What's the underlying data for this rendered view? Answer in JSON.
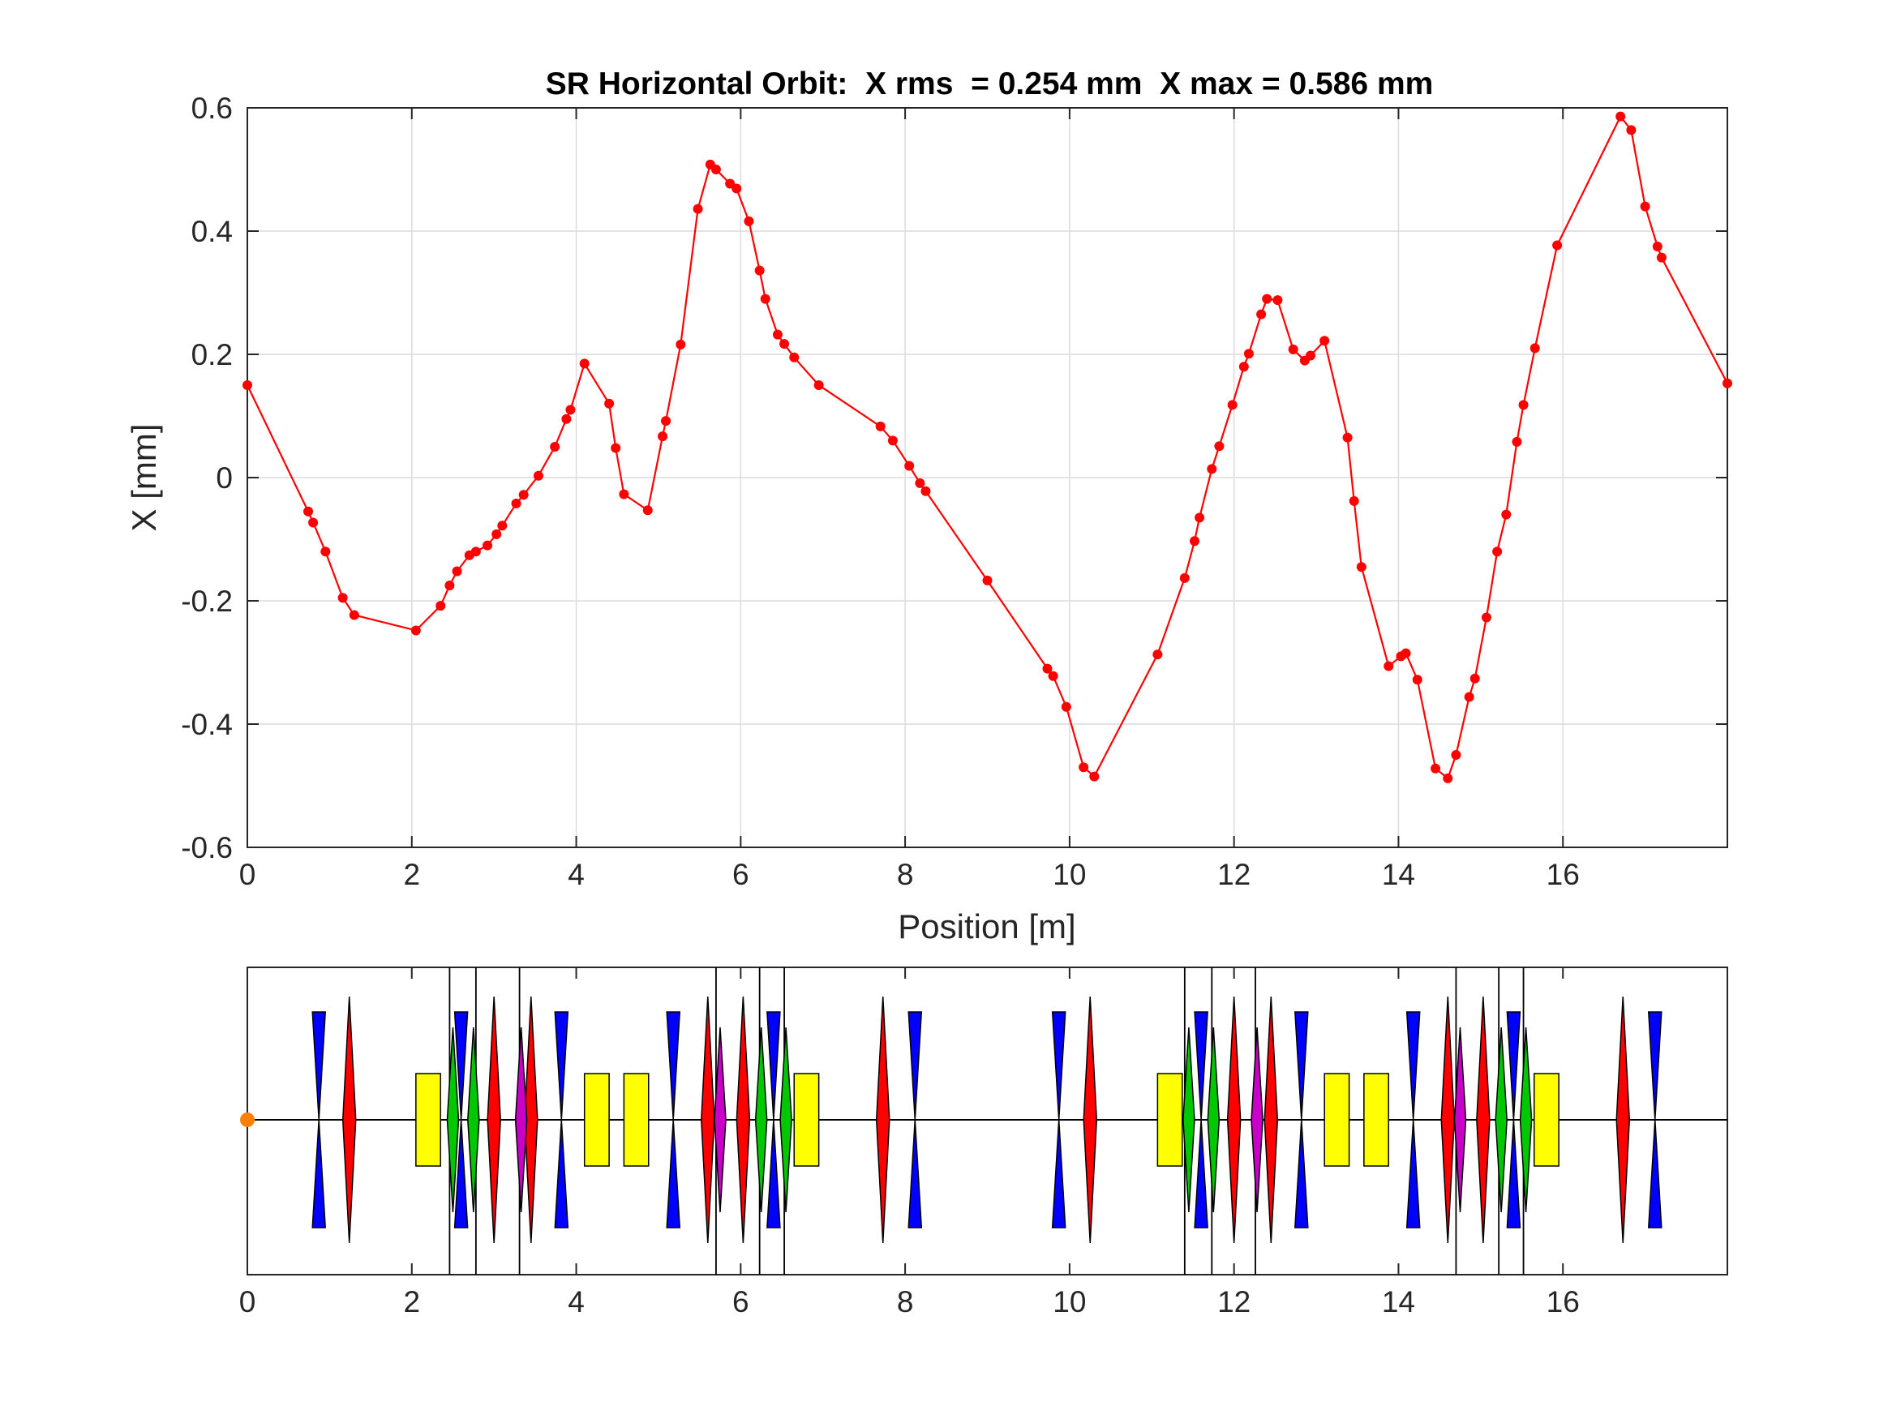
{
  "colors": {
    "orbit": "#ff0000",
    "grid": "#dcdcdc",
    "axes": "#262626",
    "dipole": "#ffff00",
    "quad_focus": "#ff0000",
    "quad_defocus": "#0000ff",
    "sext_green": "#00c800",
    "sext_magenta": "#c800c8",
    "bpm_marker": "#ff8000"
  },
  "chart_data": [
    {
      "type": "line",
      "title": "SR Horizontal Orbit:  X rms  = 0.254 mm  X max = 0.586 mm",
      "xlabel": "Position [m]",
      "ylabel": "X [mm]",
      "xlim": [
        0,
        18
      ],
      "ylim": [
        -0.6,
        0.6
      ],
      "xticks": [
        0,
        2,
        4,
        6,
        8,
        10,
        12,
        14,
        16
      ],
      "yticks": [
        -0.6,
        -0.4,
        -0.2,
        0,
        0.2,
        0.4,
        0.6
      ],
      "xtick_labels": [
        "0",
        "2",
        "4",
        "6",
        "8",
        "10",
        "12",
        "14",
        "16"
      ],
      "ytick_labels": [
        "-0.6",
        "-0.4",
        "-0.2",
        "0",
        "0.2",
        "0.4",
        "0.6"
      ],
      "grid": true,
      "series": [
        {
          "marker": "dot",
          "x": [
            0,
            0.74,
            0.8,
            0.95,
            1.16,
            1.3,
            2.05,
            2.35,
            2.46,
            2.55,
            2.7,
            2.78,
            2.92,
            3.03,
            3.1,
            3.27,
            3.36,
            3.54,
            3.74,
            3.88,
            3.93,
            4.1,
            4.4,
            4.48,
            4.58,
            4.87,
            5.05,
            5.09,
            5.27,
            5.48,
            5.63,
            5.7,
            5.87,
            5.95,
            6.1,
            6.23,
            6.3,
            6.45,
            6.53,
            6.65,
            6.95,
            7.7,
            7.85,
            8.05,
            8.18,
            8.25,
            9.0,
            9.73,
            9.8,
            9.96,
            10.17,
            10.3,
            11.07,
            11.4,
            11.52,
            11.58,
            11.73,
            11.82,
            11.98,
            12.12,
            12.18,
            12.33,
            12.4,
            12.53,
            12.72,
            12.86,
            12.93,
            13.1,
            13.38,
            13.46,
            13.55,
            13.88,
            14.03,
            14.09,
            14.23,
            14.45,
            14.6,
            14.7,
            14.86,
            14.93,
            15.07,
            15.2,
            15.31,
            15.44,
            15.52,
            15.66,
            15.93,
            16.7,
            16.83,
            17.0,
            17.15,
            17.2,
            18.0
          ],
          "y": [
            0.15,
            -0.055,
            -0.073,
            -0.12,
            -0.195,
            -0.223,
            -0.248,
            -0.208,
            -0.175,
            -0.152,
            -0.126,
            -0.12,
            -0.11,
            -0.092,
            -0.078,
            -0.042,
            -0.028,
            0.003,
            0.05,
            0.095,
            0.11,
            0.185,
            0.12,
            0.048,
            -0.027,
            -0.053,
            0.067,
            0.092,
            0.216,
            0.436,
            0.508,
            0.5,
            0.477,
            0.469,
            0.416,
            0.336,
            0.29,
            0.232,
            0.217,
            0.195,
            0.15,
            0.083,
            0.06,
            0.019,
            -0.009,
            -0.022,
            -0.167,
            -0.31,
            -0.322,
            -0.372,
            -0.47,
            -0.485,
            -0.287,
            -0.163,
            -0.103,
            -0.065,
            0.014,
            0.051,
            0.118,
            0.18,
            0.201,
            0.265,
            0.29,
            0.288,
            0.208,
            0.19,
            0.198,
            0.222,
            0.065,
            -0.038,
            -0.145,
            -0.306,
            -0.29,
            -0.285,
            -0.328,
            -0.472,
            -0.488,
            -0.45,
            -0.356,
            -0.326,
            -0.227,
            -0.12,
            -0.06,
            0.058,
            0.118,
            0.21,
            0.377,
            0.586,
            0.564,
            0.44,
            0.375,
            0.357,
            0.153
          ]
        }
      ]
    },
    {
      "type": "lattice",
      "xlim": [
        0,
        18
      ],
      "xticks": [
        0,
        2,
        4,
        6,
        8,
        10,
        12,
        14,
        16
      ],
      "xtick_labels": [
        "0",
        "2",
        "4",
        "6",
        "8",
        "10",
        "12",
        "14",
        "16"
      ],
      "start_marker_x": 0,
      "bpm_positions": [
        2.46,
        2.78,
        3.31,
        5.7,
        6.23,
        6.53,
        11.4,
        11.73,
        12.26,
        14.7,
        15.22,
        15.52
      ],
      "dipoles": [
        [
          2.05,
          2.35
        ],
        [
          4.1,
          4.4
        ],
        [
          4.58,
          4.88
        ],
        [
          6.65,
          6.95
        ],
        [
          11.07,
          11.37
        ],
        [
          13.1,
          13.4
        ],
        [
          13.58,
          13.88
        ],
        [
          15.65,
          15.95
        ]
      ],
      "quads_focus": [
        1.24,
        3.0,
        3.45,
        5.6,
        6.03,
        7.73,
        10.25,
        12.0,
        12.45,
        14.6,
        15.03,
        16.73
      ],
      "quads_defocus": [
        0.87,
        2.6,
        3.82,
        5.18,
        6.4,
        8.12,
        9.87,
        11.6,
        12.82,
        14.18,
        15.4,
        17.12
      ],
      "sext_green": [
        2.5,
        2.75,
        6.25,
        6.55,
        11.45,
        11.75,
        15.25,
        15.55
      ],
      "sext_magenta": [
        3.33,
        5.75,
        12.28,
        14.75
      ]
    }
  ]
}
